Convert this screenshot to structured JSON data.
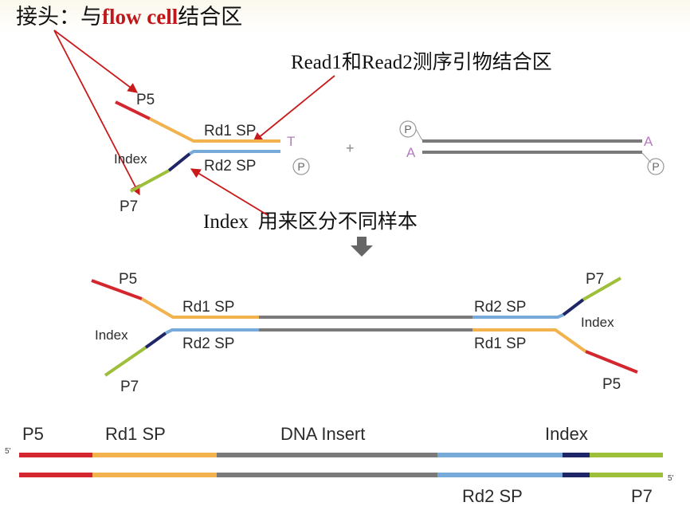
{
  "colors": {
    "p5": "#d4262e",
    "rd1": "#f2b24d",
    "insert": "#7a7a7a",
    "rd2": "#77a9d9",
    "index": "#1f2668",
    "p7": "#9dbf3a",
    "arrow": "#c81a1a",
    "down_arrow": "#666666",
    "purple": "#b57bbf"
  },
  "annotations": {
    "adapter_prefix": "接头：与",
    "adapter_highlight": "flow cell",
    "adapter_suffix": "结合区",
    "primer_site": "Read1和Read2测序引物结合区",
    "index_word": "Index",
    "index_desc": "用来区分不同样本"
  },
  "adapter": {
    "p5": "P5",
    "rd1": "Rd1 SP",
    "t_base": "T",
    "index": "Index",
    "rd2": "Rd2 SP",
    "phosphate": "P",
    "p7": "P7"
  },
  "insert_fragment": {
    "plus": "+",
    "phosphate_top": "P",
    "a_left": "A",
    "a_right": "A",
    "phosphate_bottom": "P"
  },
  "ligated": {
    "left_p5": "P5",
    "left_rd1": "Rd1 SP",
    "left_index": "Index",
    "left_rd2": "Rd2 SP",
    "left_p7": "P7",
    "right_p7": "P7",
    "right_rd2": "Rd2 SP",
    "right_index": "Index",
    "right_rd1": "Rd1 SP",
    "right_p5": "P5"
  },
  "library": {
    "p5": "P5",
    "rd1": "Rd1 SP",
    "insert": "DNA Insert",
    "index": "Index",
    "rd2": "Rd2 SP",
    "p7": "P7",
    "five_prime_top": "5'",
    "five_prime_bottom": "5'"
  }
}
